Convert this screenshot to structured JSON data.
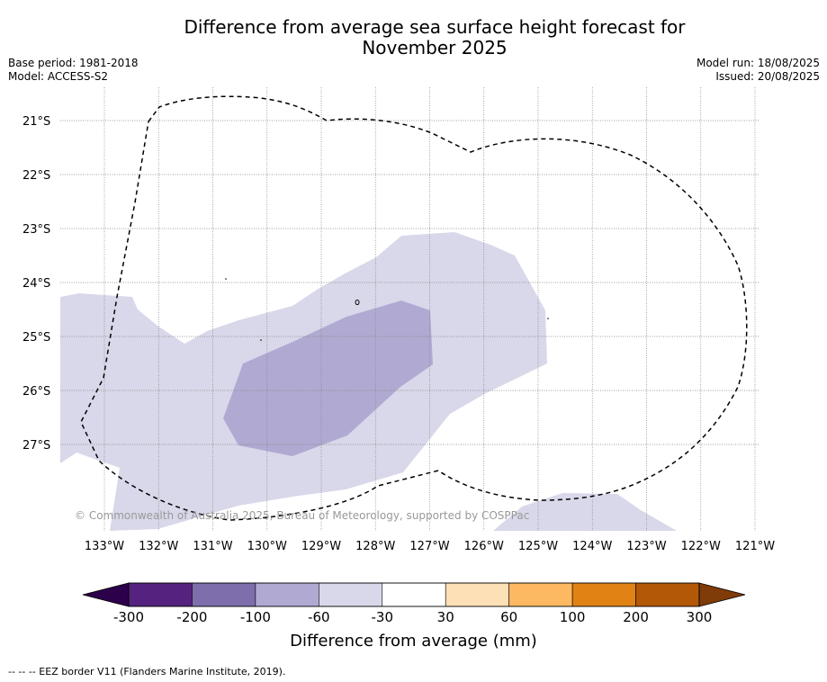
{
  "title_line1": "Difference from average sea surface height forecast for",
  "title_line2": "November 2025",
  "meta_left": [
    "Base period: 1981-2018",
    "Model: ACCESS-S2"
  ],
  "meta_right": [
    "Model run: 18/08/2025",
    "Issued: 20/08/2025"
  ],
  "map": {
    "lat_labels": [
      "21°S",
      "22°S",
      "23°S",
      "24°S",
      "25°S",
      "26°S",
      "27°S"
    ],
    "lon_labels": [
      "133°W",
      "132°W",
      "131°W",
      "130°W",
      "129°W",
      "128°W",
      "127°W",
      "126°W",
      "125°W",
      "124°W",
      "123°W",
      "122°W",
      "121°W"
    ],
    "lat_values": [
      -21,
      -22,
      -23,
      -24,
      -25,
      -26,
      -27
    ],
    "lon_values": [
      -133,
      -132,
      -131,
      -130,
      -129,
      -128,
      -127,
      -126,
      -125,
      -124,
      -123,
      -122,
      -121
    ],
    "gridlines": true,
    "copyright": "© Commonwealth of Australia 2025, Bureau of Meteorology, supported by COSPPac",
    "fill_colors": {
      "light": "#d8d8ea",
      "medium": "#b0aad2"
    }
  },
  "colorbar": {
    "title": "Difference from average (mm)",
    "tick_labels": [
      "-300",
      "-200",
      "-100",
      "-60",
      "-30",
      "30",
      "60",
      "100",
      "200",
      "300"
    ],
    "colors": [
      "#55227f",
      "#7e6eab",
      "#b0aad2",
      "#d8d8ea",
      "#ffffff",
      "#fee0b6",
      "#fdb862",
      "#e08214",
      "#b35806"
    ],
    "extend_low_color": "#2d004b",
    "extend_high_color": "#7f3b08"
  },
  "footnote": "--  --  -- EEZ border V11 (Flanders Marine Institute, 2019)."
}
